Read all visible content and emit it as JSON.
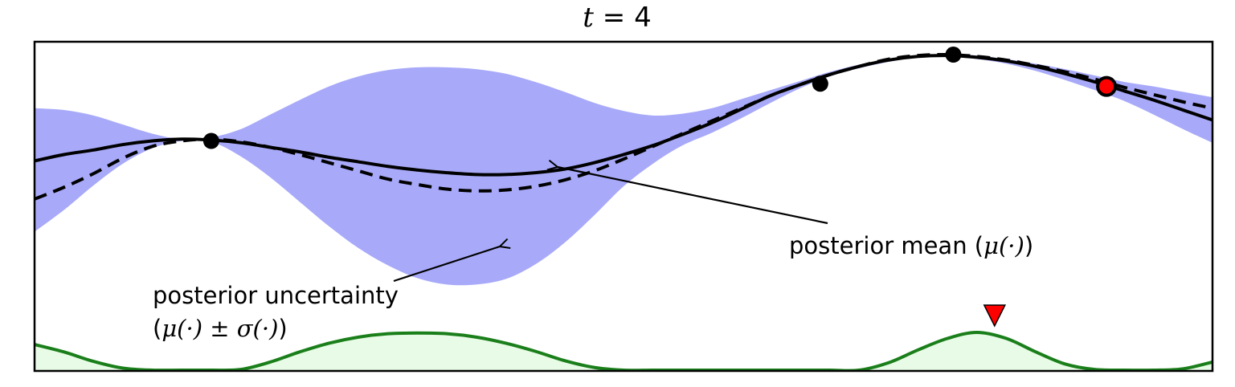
{
  "chart_data": {
    "type": "line",
    "title": {
      "var": "t",
      "eq": " = ",
      "value": "4"
    },
    "xlim": [
      0,
      10
    ],
    "ylim": [
      -2.6,
      1.2
    ],
    "acq_ylim": [
      0,
      1
    ],
    "grid": false,
    "ticks": false,
    "colors": {
      "mean": "#000000",
      "truth": "#000000",
      "uncertainty": "#a8aaf9",
      "acquisition_line": "#1a7f1a",
      "acquisition_fill": "#e8fbe6",
      "observation": "#000000",
      "next_point": "#ff0000",
      "next_marker": "#ff0000"
    },
    "x": [
      0.0,
      0.25,
      0.5,
      0.75,
      1.0,
      1.25,
      1.5,
      1.75,
      2.0,
      2.25,
      2.5,
      2.75,
      3.0,
      3.25,
      3.5,
      3.75,
      4.0,
      4.25,
      4.5,
      4.75,
      5.0,
      5.25,
      5.5,
      5.75,
      6.0,
      6.25,
      6.5,
      6.75,
      7.0,
      7.25,
      7.5,
      7.75,
      8.0,
      8.25,
      8.5,
      8.75,
      9.0,
      9.25,
      9.5,
      9.75,
      10.0
    ],
    "series": [
      {
        "role": "mean",
        "values": [
          -0.2,
          -0.13,
          -0.08,
          -0.02,
          0.02,
          0.04,
          0.03,
          0.0,
          -0.05,
          -0.1,
          -0.16,
          -0.21,
          -0.26,
          -0.3,
          -0.33,
          -0.35,
          -0.35,
          -0.33,
          -0.29,
          -0.22,
          -0.13,
          -0.03,
          0.09,
          0.22,
          0.37,
          0.52,
          0.64,
          0.75,
          0.84,
          0.91,
          0.95,
          0.96,
          0.94,
          0.9,
          0.84,
          0.76,
          0.67,
          0.57,
          0.47,
          0.36,
          0.25
        ]
      },
      {
        "role": "truth",
        "values": [
          -0.62,
          -0.49,
          -0.34,
          -0.17,
          -0.04,
          0.02,
          0.04,
          0.01,
          -0.05,
          -0.13,
          -0.22,
          -0.31,
          -0.4,
          -0.46,
          -0.51,
          -0.53,
          -0.52,
          -0.48,
          -0.41,
          -0.31,
          -0.18,
          -0.04,
          0.1,
          0.24,
          0.38,
          0.52,
          0.64,
          0.75,
          0.84,
          0.92,
          0.96,
          0.97,
          0.95,
          0.91,
          0.85,
          0.78,
          0.7,
          0.61,
          0.53,
          0.45,
          0.38
        ]
      },
      {
        "role": "upper",
        "values": [
          0.38,
          0.36,
          0.3,
          0.2,
          0.1,
          0.04,
          0.06,
          0.15,
          0.31,
          0.47,
          0.62,
          0.73,
          0.8,
          0.83,
          0.83,
          0.81,
          0.76,
          0.67,
          0.56,
          0.44,
          0.35,
          0.3,
          0.32,
          0.38,
          0.48,
          0.58,
          0.68,
          0.78,
          0.86,
          0.92,
          0.96,
          0.97,
          0.96,
          0.92,
          0.87,
          0.81,
          0.74,
          0.67,
          0.62,
          0.56,
          0.5
        ]
      },
      {
        "role": "lower",
        "values": [
          -0.98,
          -0.74,
          -0.47,
          -0.23,
          -0.06,
          0.02,
          0.01,
          -0.15,
          -0.38,
          -0.65,
          -0.92,
          -1.16,
          -1.35,
          -1.49,
          -1.56,
          -1.56,
          -1.5,
          -1.34,
          -1.1,
          -0.8,
          -0.48,
          -0.23,
          -0.03,
          0.11,
          0.27,
          0.44,
          0.6,
          0.73,
          0.82,
          0.89,
          0.94,
          0.95,
          0.92,
          0.87,
          0.79,
          0.69,
          0.58,
          0.46,
          0.31,
          0.15,
          0.0
        ]
      },
      {
        "role": "acquisition",
        "values": [
          0.38,
          0.27,
          0.13,
          0.03,
          0.0,
          0.0,
          0.0,
          0.01,
          0.12,
          0.27,
          0.4,
          0.49,
          0.54,
          0.55,
          0.54,
          0.49,
          0.4,
          0.28,
          0.14,
          0.04,
          0.0,
          0.0,
          0.0,
          0.0,
          0.0,
          0.0,
          0.0,
          0.0,
          0.0,
          0.11,
          0.3,
          0.47,
          0.56,
          0.47,
          0.27,
          0.09,
          0.01,
          0.0,
          0.0,
          0.02,
          0.12
        ]
      }
    ],
    "observations": [
      {
        "x": 1.5,
        "y": 0.02
      },
      {
        "x": 6.67,
        "y": 0.65
      },
      {
        "x": 7.8,
        "y": 0.97
      }
    ],
    "next_point": {
      "x": 9.1,
      "y": 0.62
    },
    "next_marker_x": 8.15,
    "annotations": [
      {
        "text": "posterior mean (",
        "math": "μ(·)",
        "close": ")"
      },
      {
        "text": "posterior uncertainty",
        "line2_open": "(",
        "math": "μ(·) ± σ(·)",
        "close": ")"
      }
    ]
  }
}
